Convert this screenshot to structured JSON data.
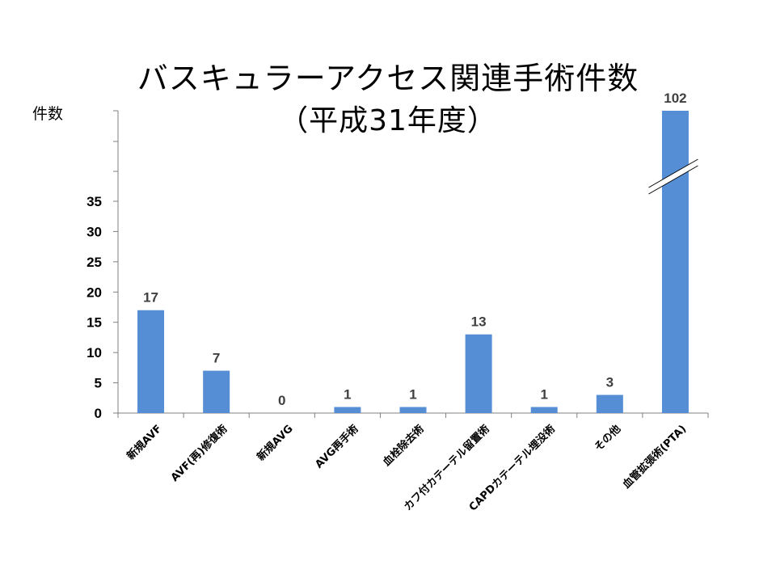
{
  "chart_data": {
    "type": "bar",
    "title": "バスキュラーアクセス関連手術件数",
    "subtitle": "（平成31年度）",
    "ylabel": "件数",
    "xlabel": "",
    "categories": [
      "新規AVF",
      "AVF(再)修復術",
      "新規AVG",
      "AVG再手術",
      "血栓除去術",
      "カフ付カテーテル留置術",
      "CAPDカテーテル埋没術",
      "その他",
      "血管拡張術(PTA)"
    ],
    "values": [
      17,
      7,
      0,
      1,
      1,
      13,
      1,
      3,
      102
    ],
    "ylim": [
      0,
      35
    ],
    "yticks": [
      0,
      5,
      10,
      15,
      20,
      25,
      30,
      35
    ],
    "axis_break": true,
    "grid": false,
    "legend": "none",
    "bar_color": "#558ED5"
  }
}
